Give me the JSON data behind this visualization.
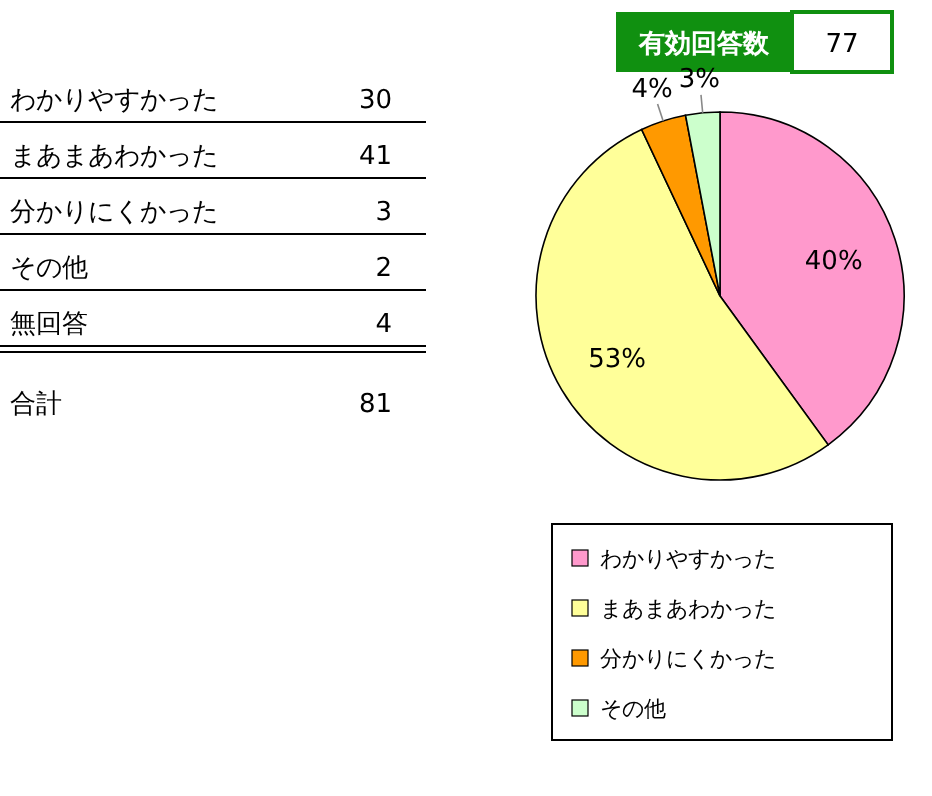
{
  "chart_data": {
    "type": "pie",
    "categories": [
      "わかりやすかった",
      "まあまあわかった",
      "分かりにくかった",
      "その他"
    ],
    "values": [
      40,
      53,
      4,
      3
    ],
    "colors": [
      "#ff99cc",
      "#ffff99",
      "#ff9900",
      "#ccffcc"
    ],
    "value_labels": [
      "40%",
      "53%",
      "4%",
      "3%"
    ],
    "legend": "bottom",
    "annotations": [
      "有効回答数",
      "77",
      "わかりやすかった",
      "30",
      "まあまあわかった",
      "41",
      "分かりにくかった",
      "3",
      "その他",
      "2",
      "無回答",
      "4",
      "合計",
      "81"
    ]
  }
}
